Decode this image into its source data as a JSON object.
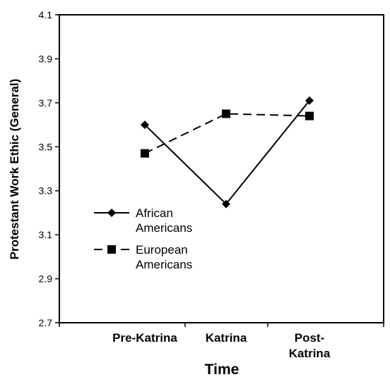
{
  "chart_data": {
    "type": "line",
    "categories": [
      "Pre-Katrina",
      "Katrina",
      "Post-\nKatrina"
    ],
    "series": [
      {
        "name": "African\nAmericans",
        "values": [
          3.6,
          3.24,
          3.71
        ],
        "marker": "diamond",
        "dash": "solid",
        "color": "#000000"
      },
      {
        "name": "European\nAmericans",
        "values": [
          3.47,
          3.65,
          3.64
        ],
        "marker": "square",
        "dash": "dashed",
        "color": "#000000"
      }
    ],
    "xlabel": "Time",
    "ylabel": "Protestant Work Ethic (General)",
    "ylim": [
      2.7,
      4.1
    ],
    "yticks": [
      2.7,
      2.9,
      3.1,
      3.3,
      3.5,
      3.7,
      3.9,
      4.1
    ],
    "ytick_labels": [
      "2.7",
      "2.9",
      "3.1",
      "3.3",
      "3.5",
      "3.7",
      "3.9",
      "4.1"
    ],
    "grid": false,
    "legend_position": "left"
  }
}
